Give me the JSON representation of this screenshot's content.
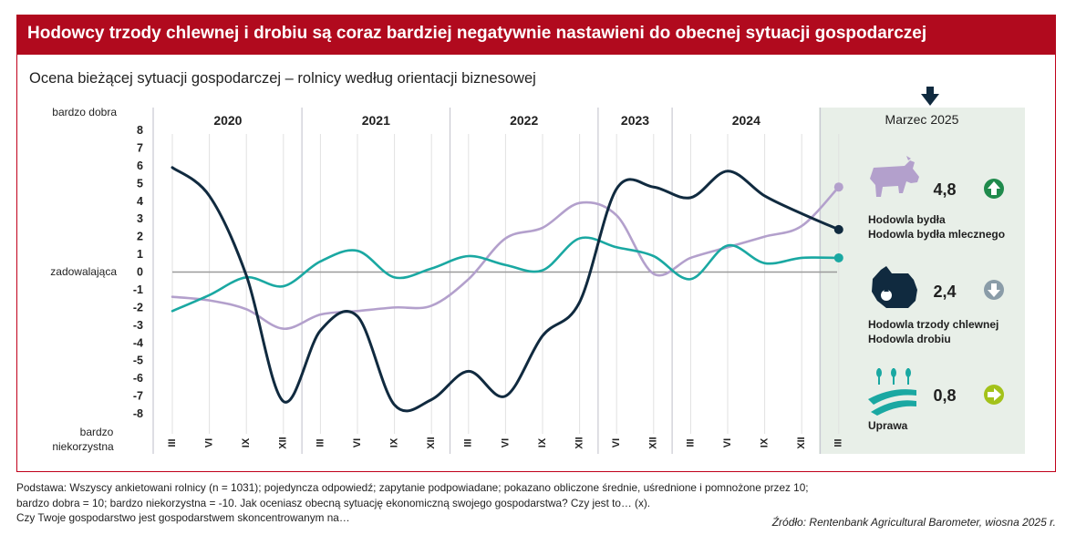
{
  "header": {
    "title": "Hodowcy trzody chlewnej i drobiu są coraz bardziej negatywnie nastawieni do obecnej sytuacji gospodarczej",
    "subtitle": "Ocena bieżącej sytuacji gospodarczej – rolnicy według orientacji biznesowej"
  },
  "footer": {
    "lines": [
      "Podstawa: Wszyscy ankietowani rolnicy (n = 1031); pojedyncza odpowiedź; zapytanie podpowiadane; pokazano obliczone średnie, uśrednione i pomnożone przez 10;",
      "bardzo dobra = 10; bardzo niekorzystna = -10. Jak oceniasz obecną sytuację ekonomiczną swojego gospodarstwa? Czy jest to… (x).",
      "Czy Twoje gospodarstwo jest gospodarstwem skoncentrowanym na…"
    ],
    "source": "Źródło: Rentenbank Agricultural Barometer, wiosna 2025 r."
  },
  "colors": {
    "accent": "#b10a1e",
    "dairy": "#b3a0cc",
    "pig_poultry": "#102a3f",
    "crop": "#1aa8a2",
    "panel": "#e8efe8",
    "arrow_up": "#1f8a4c",
    "arrow_down": "#8a9ca8",
    "arrow_right": "#a3c21a"
  },
  "chart_data": {
    "type": "line",
    "ylim": [
      -8,
      8
    ],
    "y_ticks": [
      8,
      7,
      6,
      5,
      4,
      3,
      2,
      1,
      0,
      -1,
      -2,
      -3,
      -4,
      -5,
      -6,
      -7,
      -8
    ],
    "y_axis_labels": {
      "top": "bardzo dobra",
      "middle": "zadowalająca",
      "bottom_line1": "bardzo",
      "bottom_line2": "niekorzystna"
    },
    "x": [
      "III 2020",
      "VI 2020",
      "IX 2020",
      "XII 2020",
      "III 2021",
      "VI 2021",
      "IX 2021",
      "XII 2021",
      "III 2022",
      "VI 2022",
      "IX 2022",
      "XII 2022",
      "VI 2023",
      "XII 2023",
      "III 2024",
      "VI 2024",
      "IX 2024",
      "XII 2024",
      "III 2025"
    ],
    "x_tick_labels": [
      "III",
      "VI",
      "IX",
      "XII",
      "III",
      "VI",
      "IX",
      "XII",
      "III",
      "VI",
      "IX",
      "XII",
      "VI",
      "XII",
      "III",
      "VI",
      "IX",
      "XII",
      "III"
    ],
    "year_groups": [
      {
        "label": "2020",
        "start": 0,
        "end": 3
      },
      {
        "label": "2021",
        "start": 4,
        "end": 7
      },
      {
        "label": "2022",
        "start": 8,
        "end": 11
      },
      {
        "label": "2023",
        "start": 12,
        "end": 13
      },
      {
        "label": "2024",
        "start": 14,
        "end": 17
      }
    ],
    "highlight_label": "Marzec 2025",
    "series": [
      {
        "name": "Hodowla bydła / Hodowla bydła mlecznego",
        "color": "#b3a0cc",
        "values": [
          -1.4,
          -1.6,
          -2.1,
          -3.2,
          -2.4,
          -2.2,
          -2.0,
          -1.9,
          -0.4,
          1.9,
          2.5,
          3.9,
          3.2,
          -0.1,
          0.8,
          1.4,
          2.0,
          2.6,
          4.8
        ]
      },
      {
        "name": "Hodowla trzody chlewnej / Hodowla drobiu",
        "color": "#102a3f",
        "values": [
          5.9,
          4.3,
          -0.2,
          -7.3,
          -3.3,
          -2.5,
          -7.5,
          -7.2,
          -5.6,
          -7.0,
          -3.6,
          -1.7,
          4.7,
          4.8,
          4.2,
          5.7,
          4.3,
          3.3,
          2.4
        ]
      },
      {
        "name": "Uprawa",
        "color": "#1aa8a2",
        "values": [
          -2.2,
          -1.3,
          -0.3,
          -0.8,
          0.6,
          1.2,
          -0.3,
          0.2,
          0.9,
          0.4,
          0.1,
          1.9,
          1.4,
          0.9,
          -0.4,
          1.5,
          0.5,
          0.8,
          0.8
        ]
      }
    ],
    "panel": [
      {
        "value": "4,8",
        "label_line1": "Hodowla bydła",
        "label_line2": "Hodowla bydła mlecznego",
        "trend": "up"
      },
      {
        "value": "2,4",
        "label_line1": "Hodowla trzody chlewnej",
        "label_line2": "Hodowla drobiu",
        "trend": "down"
      },
      {
        "value": "0,8",
        "label_line1": "Uprawa",
        "label_line2": "",
        "trend": "right"
      }
    ]
  }
}
